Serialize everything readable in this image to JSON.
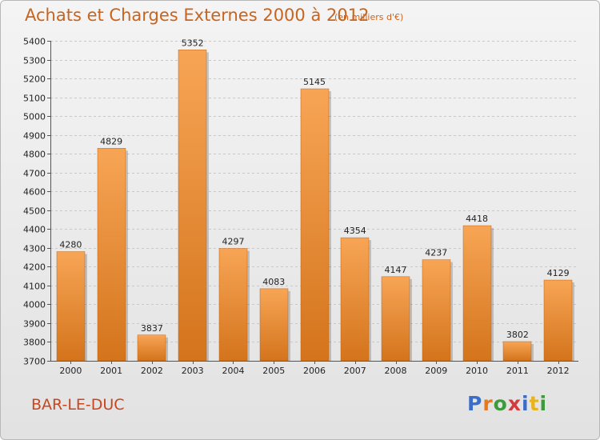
{
  "title": "Achats et Charges Externes 2000 à 2012",
  "subtitle": "(en milliers d'€)",
  "commune": "BAR-LE-DUC",
  "logo_letters": [
    "P",
    "r",
    "o",
    "x",
    "i",
    "t",
    "i"
  ],
  "colors": {
    "bar_top": "#f7a555",
    "bar_bottom": "#d4741c",
    "title": "#c8641e"
  },
  "chart_data": {
    "type": "bar",
    "categories": [
      "2000",
      "2001",
      "2002",
      "2003",
      "2004",
      "2005",
      "2006",
      "2007",
      "2008",
      "2009",
      "2010",
      "2011",
      "2012"
    ],
    "values": [
      4280,
      4829,
      3837,
      5352,
      4297,
      4083,
      5145,
      4354,
      4147,
      4237,
      4418,
      3802,
      4129
    ],
    "yticks": [
      3700,
      3800,
      3900,
      4000,
      4100,
      4200,
      4300,
      4400,
      4500,
      4600,
      4700,
      4800,
      4900,
      5000,
      5100,
      5200,
      5300,
      5400
    ],
    "ylim": [
      3700,
      5400
    ],
    "grid": true,
    "title": "Achats et Charges Externes 2000 à 2012",
    "xlabel": "",
    "ylabel": ""
  }
}
